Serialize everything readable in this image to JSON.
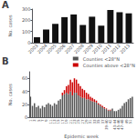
{
  "chart_data": [
    {
      "type": "bar",
      "title": "A",
      "categories": [
        "2003",
        "2004",
        "2005",
        "2006",
        "2007",
        "2008",
        "2009",
        "2010",
        "2011",
        "2012",
        "2013"
      ],
      "values": [
        48,
        118,
        168,
        228,
        252,
        158,
        232,
        152,
        292,
        272,
        262
      ],
      "color": "#111111",
      "ylabel": "No. cases",
      "ylim": [
        0,
        300
      ],
      "yticks": [
        0,
        100,
        200,
        300
      ],
      "grid": false
    },
    {
      "type": "bar",
      "title": "B",
      "categories": [
        "1",
        null,
        "3",
        null,
        "5",
        null,
        "7",
        null,
        "9",
        null,
        "11",
        null,
        "13",
        null,
        "15",
        null,
        "17",
        null,
        "19",
        null,
        "21",
        null,
        "23",
        null,
        "25",
        null,
        "27",
        null,
        "29",
        null,
        "31",
        null,
        "33",
        null,
        "35",
        null,
        "37",
        null,
        "39-40",
        null,
        "42",
        null,
        "43-44",
        null,
        "45-46",
        null,
        "47-48",
        null,
        "49",
        null,
        "51",
        null
      ],
      "series": [
        {
          "name": "Counties <28°N",
          "color": "#555555",
          "values": [
            32,
            18,
            22,
            16,
            18,
            14,
            18,
            16,
            20,
            22,
            20,
            18,
            22,
            20,
            26,
            28,
            34,
            36,
            38,
            36,
            40,
            34,
            38,
            38,
            34,
            32,
            30,
            30,
            28,
            28,
            26,
            25,
            24,
            23,
            20,
            18,
            16,
            14,
            13,
            11,
            11,
            14,
            10,
            10,
            12,
            14,
            18,
            22,
            24,
            28,
            30,
            32
          ]
        },
        {
          "name": "Counties above <28°N",
          "color": "#cc0000",
          "values": [
            0,
            0,
            0,
            0,
            0,
            0,
            0,
            0,
            0,
            0,
            0,
            0,
            0,
            0,
            0,
            0,
            4,
            6,
            10,
            14,
            18,
            20,
            22,
            20,
            18,
            16,
            14,
            12,
            10,
            8,
            6,
            5,
            4,
            3,
            2,
            2,
            2,
            2,
            1,
            1,
            1,
            0,
            0,
            0,
            0,
            0,
            0,
            0,
            0,
            0,
            0,
            0
          ]
        }
      ],
      "stacked": true,
      "xlabel": "Epidemic week",
      "ylabel": "No. cases",
      "ylim": [
        0,
        70
      ],
      "yticks": [
        0,
        20,
        40,
        60
      ],
      "legend": "upper right",
      "grid": false
    }
  ]
}
